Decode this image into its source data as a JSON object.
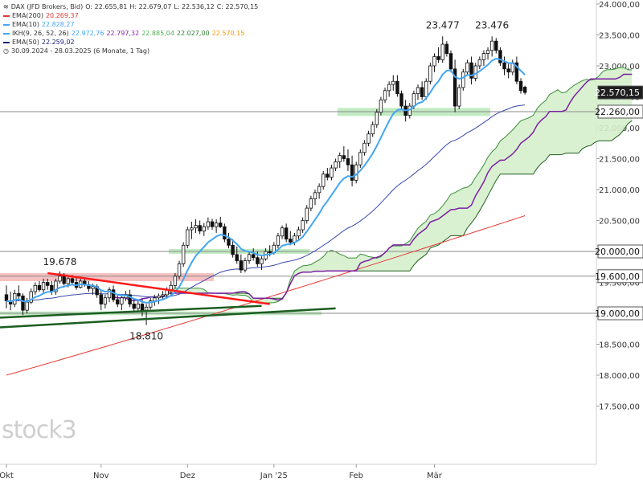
{
  "legend": {
    "title_line": {
      "icon": "chart-icon",
      "instrument": "DAX (JFD Brokers, Bid)",
      "open": "O: 22.655,81",
      "high": "H: 22.679,07",
      "low": "L: 22.536,12",
      "close": "C: 22.570,15"
    },
    "indicators": [
      {
        "label": "EMA(200)",
        "value": "20.269,37",
        "color": "#e53935"
      },
      {
        "label": "EMA(10)",
        "value": "22.828,27",
        "color": "#42a5f5"
      },
      {
        "label": "IKH(9, 26, 52, 26)",
        "values": [
          "22.972,76",
          "22.797,32",
          "22.885,04",
          "22.027,00",
          "22.570,15"
        ],
        "value_colors": [
          "#42a5f5",
          "#8e24aa",
          "#4caf50",
          "#2e7d32",
          "#ff9800"
        ],
        "color": "#42a5f5"
      },
      {
        "label": "EMA(50)",
        "value": "22.259,02",
        "color": "#1a237e"
      }
    ],
    "period_line": {
      "icon": "clock-icon",
      "text": "30.09.2024 - 28.03.2025  (6 Monate, 1 Tag)"
    }
  },
  "watermark": "stock3",
  "chart_data": {
    "type": "candlestick",
    "x_tick_labels": [
      "Okt",
      "Nov",
      "Dez",
      "Jan '25",
      "Feb",
      "Mär"
    ],
    "y_tick_labels": [
      "24.000,00",
      "23.500,00",
      "23.000,00",
      "22.500,00",
      "22.000,00",
      "21.500,00",
      "21.000,00",
      "20.500,00",
      "20.000,00",
      "19.500,00",
      "19.000,00",
      "18.500,00",
      "18.000,00",
      "17.500,00"
    ],
    "ylim": [
      17350,
      24050
    ],
    "price_labels": [
      {
        "text": "22.570,15",
        "value": 22570.15,
        "style": "last"
      },
      {
        "text": "22.260,00",
        "value": 22260,
        "style": "level"
      },
      {
        "text": "20.000,00",
        "value": 20000,
        "style": "level"
      },
      {
        "text": "19.600,00",
        "value": 19600,
        "style": "level"
      },
      {
        "text": "19.000,00",
        "value": 19000,
        "style": "level"
      }
    ],
    "annotations": [
      {
        "text": "19.678",
        "value": 19678,
        "date_index": 13
      },
      {
        "text": "18.810",
        "value": 18810,
        "date_index": 34
      },
      {
        "text": "23.477",
        "value": 23477,
        "date_index": 106
      },
      {
        "text": "23.476",
        "value": 23476,
        "date_index": 118
      }
    ],
    "candles": [
      [
        19300,
        19450,
        19080,
        19200
      ],
      [
        19200,
        19350,
        19050,
        19150
      ],
      [
        19150,
        19380,
        19100,
        19320
      ],
      [
        19320,
        19450,
        19200,
        19280
      ],
      [
        19280,
        19320,
        18970,
        19050
      ],
      [
        19050,
        19250,
        19000,
        19180
      ],
      [
        19180,
        19400,
        19150,
        19350
      ],
      [
        19350,
        19500,
        19300,
        19450
      ],
      [
        19450,
        19520,
        19350,
        19380
      ],
      [
        19380,
        19560,
        19320,
        19500
      ],
      [
        19500,
        19560,
        19380,
        19450
      ],
      [
        19450,
        19520,
        19300,
        19350
      ],
      [
        19350,
        19560,
        19300,
        19520
      ],
      [
        19520,
        19678,
        19480,
        19600
      ],
      [
        19600,
        19650,
        19450,
        19480
      ],
      [
        19480,
        19600,
        19420,
        19560
      ],
      [
        19560,
        19620,
        19450,
        19500
      ],
      [
        19500,
        19580,
        19380,
        19420
      ],
      [
        19420,
        19560,
        19400,
        19520
      ],
      [
        19520,
        19580,
        19430,
        19460
      ],
      [
        19460,
        19520,
        19350,
        19400
      ],
      [
        19400,
        19480,
        19300,
        19430
      ],
      [
        19430,
        19470,
        19250,
        19300
      ],
      [
        19300,
        19380,
        19050,
        19150
      ],
      [
        19150,
        19300,
        19080,
        19250
      ],
      [
        19250,
        19420,
        19180,
        19380
      ],
      [
        19380,
        19450,
        19180,
        19220
      ],
      [
        19220,
        19300,
        19100,
        19150
      ],
      [
        19150,
        19280,
        19050,
        19250
      ],
      [
        19250,
        19360,
        19200,
        19300
      ],
      [
        19300,
        19380,
        19100,
        19150
      ],
      [
        19150,
        19250,
        19020,
        19080
      ],
      [
        19080,
        19200,
        19020,
        19150
      ],
      [
        19150,
        19230,
        18950,
        19050
      ],
      [
        19050,
        19150,
        18810,
        19100
      ],
      [
        19100,
        19250,
        19060,
        19200
      ],
      [
        19200,
        19300,
        19120,
        19250
      ],
      [
        19250,
        19320,
        19150,
        19280
      ],
      [
        19280,
        19360,
        19220,
        19300
      ],
      [
        19300,
        19420,
        19250,
        19380
      ],
      [
        19380,
        19520,
        19300,
        19450
      ],
      [
        19450,
        19650,
        19400,
        19600
      ],
      [
        19600,
        19850,
        19550,
        19800
      ],
      [
        19800,
        20150,
        19750,
        20100
      ],
      [
        20100,
        20400,
        20050,
        20350
      ],
      [
        20350,
        20480,
        20200,
        20380
      ],
      [
        20380,
        20520,
        20300,
        20420
      ],
      [
        20420,
        20500,
        20280,
        20330
      ],
      [
        20330,
        20460,
        20250,
        20400
      ],
      [
        20400,
        20550,
        20350,
        20480
      ],
      [
        20480,
        20530,
        20350,
        20400
      ],
      [
        20400,
        20520,
        20300,
        20460
      ],
      [
        20460,
        20560,
        20380,
        20400
      ],
      [
        20400,
        20450,
        20150,
        20200
      ],
      [
        20200,
        20300,
        20050,
        20100
      ],
      [
        20100,
        20200,
        19900,
        19950
      ],
      [
        19950,
        20080,
        19800,
        19850
      ],
      [
        19850,
        19950,
        19650,
        19700
      ],
      [
        19700,
        19900,
        19660,
        19850
      ],
      [
        19850,
        20000,
        19800,
        19950
      ],
      [
        19950,
        20050,
        19850,
        19900
      ],
      [
        19900,
        20000,
        19750,
        19800
      ],
      [
        19800,
        19920,
        19700,
        19880
      ],
      [
        19880,
        20050,
        19850,
        20000
      ],
      [
        20000,
        20100,
        19920,
        19980
      ],
      [
        19980,
        20150,
        19950,
        20100
      ],
      [
        20100,
        20300,
        20050,
        20250
      ],
      [
        20250,
        20420,
        20200,
        20380
      ],
      [
        20380,
        20450,
        20150,
        20200
      ],
      [
        20200,
        20330,
        20100,
        20150
      ],
      [
        20150,
        20300,
        20100,
        20250
      ],
      [
        20250,
        20400,
        20200,
        20350
      ],
      [
        20350,
        20550,
        20300,
        20500
      ],
      [
        20500,
        20750,
        20450,
        20700
      ],
      [
        20700,
        20900,
        20650,
        20850
      ],
      [
        20850,
        21000,
        20750,
        20950
      ],
      [
        20950,
        21100,
        20850,
        21050
      ],
      [
        21050,
        21300,
        21000,
        21250
      ],
      [
        21250,
        21350,
        21150,
        21200
      ],
      [
        21200,
        21400,
        21150,
        21350
      ],
      [
        21350,
        21500,
        21300,
        21450
      ],
      [
        21450,
        21600,
        21350,
        21550
      ],
      [
        21550,
        21700,
        21450,
        21500
      ],
      [
        21500,
        21650,
        21300,
        21400
      ],
      [
        21400,
        21550,
        21050,
        21150
      ],
      [
        21150,
        21450,
        21100,
        21400
      ],
      [
        21400,
        21650,
        21350,
        21600
      ],
      [
        21600,
        21800,
        21550,
        21750
      ],
      [
        21750,
        21950,
        21700,
        21900
      ],
      [
        21900,
        22100,
        21850,
        22050
      ],
      [
        22050,
        22300,
        22000,
        22250
      ],
      [
        22250,
        22500,
        22200,
        22450
      ],
      [
        22450,
        22650,
        22400,
        22600
      ],
      [
        22600,
        22750,
        22500,
        22700
      ],
      [
        22700,
        22850,
        22600,
        22750
      ],
      [
        22750,
        22850,
        22500,
        22550
      ],
      [
        22550,
        22600,
        22300,
        22350
      ],
      [
        22350,
        22450,
        22100,
        22200
      ],
      [
        22200,
        22400,
        22150,
        22350
      ],
      [
        22350,
        22600,
        22300,
        22550
      ],
      [
        22550,
        22700,
        22450,
        22650
      ],
      [
        22650,
        22750,
        22450,
        22500
      ],
      [
        22500,
        22800,
        22450,
        22750
      ],
      [
        22750,
        23050,
        22700,
        23000
      ],
      [
        23000,
        23200,
        22900,
        23150
      ],
      [
        23150,
        23300,
        23050,
        23100
      ],
      [
        23100,
        23477,
        23050,
        23350
      ],
      [
        23350,
        23400,
        23150,
        23200
      ],
      [
        23200,
        23250,
        22900,
        22950
      ],
      [
        22950,
        23100,
        22250,
        22350
      ],
      [
        22350,
        22700,
        22300,
        22650
      ],
      [
        22650,
        22950,
        22600,
        22900
      ],
      [
        22900,
        23100,
        22850,
        23050
      ],
      [
        23050,
        23150,
        22700,
        22800
      ],
      [
        22800,
        23050,
        22750,
        23000
      ],
      [
        23000,
        23150,
        22950,
        23100
      ],
      [
        23100,
        23250,
        23000,
        23200
      ],
      [
        23200,
        23300,
        23100,
        23250
      ],
      [
        23250,
        23476,
        23150,
        23400
      ],
      [
        23400,
        23450,
        23200,
        23250
      ],
      [
        23250,
        23300,
        23000,
        23050
      ],
      [
        23050,
        23150,
        22850,
        22950
      ],
      [
        22950,
        23050,
        22800,
        22900
      ],
      [
        22900,
        23100,
        22850,
        23050
      ],
      [
        23050,
        23150,
        22700,
        22750
      ],
      [
        22750,
        22800,
        22550,
        22600
      ],
      [
        22655.81,
        22679.07,
        22536.12,
        22570.15
      ]
    ],
    "zones": [
      {
        "name": "resistance-zone-19600",
        "from": 19520,
        "to": 19650,
        "color": "#f4b6b6"
      },
      {
        "name": "support-zone-19000",
        "from": 18970,
        "to": 19030,
        "color": "#b8e8b8"
      },
      {
        "name": "support-zone-20000",
        "from": 19960,
        "to": 20040,
        "color": "#b8e8b8"
      },
      {
        "name": "support-zone-22260",
        "from": 22190,
        "to": 22320,
        "color": "#b8e8b8"
      }
    ],
    "horizontal_lines": [
      22260,
      20000,
      19600,
      19000
    ],
    "trendlines": [
      {
        "name": "resistance-trendline",
        "color": "#ff1a1a",
        "points": [
          [
            10,
            19650
          ],
          [
            64,
            19150
          ]
        ]
      },
      {
        "name": "support-trendline-upper",
        "color": "#1b5e20",
        "points": [
          [
            -5,
            18920
          ],
          [
            62,
            19120
          ]
        ]
      },
      {
        "name": "support-trendline-lower",
        "color": "#1b5e20",
        "points": [
          [
            -5,
            18760
          ],
          [
            80,
            19080
          ]
        ]
      }
    ]
  }
}
